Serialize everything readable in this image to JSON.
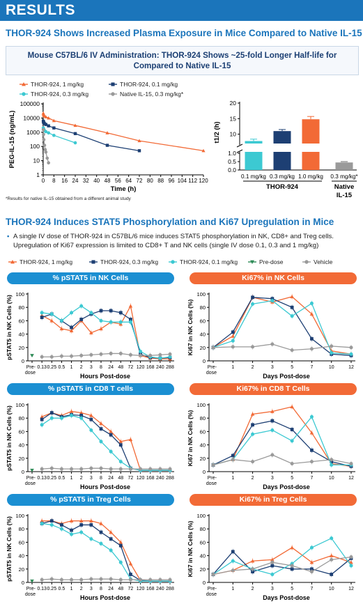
{
  "header": {
    "title": "RESULTS"
  },
  "section1": {
    "title": "THOR-924 Shows Increased Plasma Exposure in Mice Compared to Native IL-15",
    "box_line1": "Mouse C57BL/6 IV Administration: THOR-924 Shows ~25-fold Longer Half-life for",
    "box_line2": "Compared to Native IL-15",
    "footnote": "*Results for native IL-15 obtained from a different animal study"
  },
  "section2": {
    "title": "THOR-924 Induces STAT5 Phosphorylation and Ki67 Upregulation in Mice",
    "bullet_line1": "A single IV dose of THOR-924 in C57BL/6 mice induces STAT5 phosphorylation in NK, CD8+ and Treg cells.",
    "bullet_line2": "Upregulation of Ki67 expression is limited to CD8+ T and NK cells (single IV dose 0.1, 0.3 and 1 mg/kg)"
  },
  "colors": {
    "orange": "#f26a36",
    "navy": "#1d3f73",
    "teal": "#3cc9d2",
    "gray": "#9a9a9a",
    "green": "#2e8b57",
    "blue": "#1b75bb"
  },
  "pk_legend": [
    {
      "label": "THOR-924, 1 mg/kg",
      "color": "#f26a36",
      "marker": "triangle"
    },
    {
      "label": "THOR-924, 0.1 mg/kg",
      "color": "#3cc9d2",
      "marker": "circle"
    },
    {
      "label": "THOR-924, 0.3 mg/kg",
      "color": "#1d3f73",
      "marker": "square"
    },
    {
      "label": "Native IL-15, 0.3 mg/kg*",
      "color": "#9a9a9a",
      "marker": "circle"
    }
  ],
  "pd_legend": [
    {
      "label": "THOR-924, 1 mg/kg",
      "color": "#f26a36",
      "marker": "triangle"
    },
    {
      "label": "THOR-924, 0.3 mg/kg",
      "color": "#1d3f73",
      "marker": "square"
    },
    {
      "label": "THOR-924, 0.1 mg/kg",
      "color": "#3cc9d2",
      "marker": "circle"
    },
    {
      "label": "Pre-dose",
      "color": "#2e8b57",
      "marker": "tri-down"
    },
    {
      "label": "Vehicle",
      "color": "#9a9a9a",
      "marker": "circle"
    }
  ],
  "chart_data": [
    {
      "id": "pk",
      "type": "line",
      "xlabel": "Time (h)",
      "ylabel": "PEG-IL-15 (ng/mL)",
      "log_y": true,
      "xlim": [
        0,
        120
      ],
      "ylim": [
        1,
        100000
      ],
      "xticks": [
        "0",
        "8",
        "16",
        "24",
        "32",
        "40",
        "48",
        "56",
        "64",
        "72",
        "80",
        "88",
        "96",
        "104",
        "112",
        "120"
      ],
      "yticks": [
        "1",
        "10",
        "100",
        "1000",
        "10000",
        "100000"
      ],
      "series": [
        {
          "name": "THOR-924, 1 mg/kg",
          "color": "#f26a36",
          "marker": "triangle",
          "x": [
            0.08,
            0.25,
            0.5,
            1,
            2,
            4,
            8,
            24,
            48,
            72,
            120
          ],
          "y": [
            22000,
            18000,
            15000,
            14000,
            12000,
            10000,
            6500,
            3000,
            900,
            250,
            50
          ]
        },
        {
          "name": "THOR-924, 0.3 mg/kg",
          "color": "#1d3f73",
          "marker": "square",
          "x": [
            0.08,
            0.25,
            0.5,
            1,
            2,
            4,
            8,
            24,
            48,
            72
          ],
          "y": [
            6000,
            5200,
            4500,
            4000,
            3500,
            2800,
            2000,
            800,
            120,
            50
          ]
        },
        {
          "name": "THOR-924, 0.1 mg/kg",
          "color": "#3cc9d2",
          "marker": "circle",
          "x": [
            0.08,
            0.25,
            0.5,
            1,
            2,
            4,
            8,
            24
          ],
          "y": [
            2000,
            1800,
            1500,
            1300,
            1100,
            900,
            600,
            180
          ]
        },
        {
          "name": "Native IL-15, 0.3 mg/kg*",
          "color": "#9a9a9a",
          "marker": "circle",
          "x": [
            0.08,
            0.25,
            0.5,
            1,
            1.5,
            2,
            3,
            4
          ],
          "y": [
            1500,
            700,
            300,
            120,
            60,
            40,
            15,
            7
          ]
        }
      ]
    },
    {
      "id": "halflife",
      "type": "bar",
      "ylabel": "t1/2 (h)",
      "broken_axis": true,
      "upper_yticks": [
        "10",
        "15",
        "20"
      ],
      "lower_yticks": [
        "0.0",
        "0.5",
        "1.0"
      ],
      "categories": [
        "0.1 mg/kg",
        "0.3 mg/kg",
        "1.0 mg/kg",
        "0.3 mg/kg*"
      ],
      "values": [
        7.8,
        11.0,
        14.8,
        0.45
      ],
      "errors": [
        0.6,
        0.5,
        0.9,
        0.05
      ],
      "colors": [
        "#3cc9d2",
        "#1d3f73",
        "#f26a36",
        "#9a9a9a"
      ],
      "group_labels": [
        "THOR-924",
        "Native",
        "IL-15"
      ]
    },
    {
      "id": "pstat5_nk",
      "type": "line",
      "title": "% pSTAT5 in NK Cells",
      "xlabel": "Hours Post-dose",
      "ylabel": "pSTAT5 in NK Cells (%)",
      "ylim": [
        0,
        100
      ],
      "yticks": [
        "0",
        "20",
        "40",
        "60",
        "80",
        "100"
      ],
      "xcats": [
        "Pre-\ndose",
        "0.13",
        "0.25",
        "0.5",
        "1",
        "2",
        "3",
        "8",
        "24",
        "48",
        "72",
        "120",
        "168",
        "240",
        "288"
      ],
      "series": [
        {
          "name": "THOR-924, 1 mg/kg",
          "color": "#f26a36",
          "marker": "triangle",
          "start": 1,
          "values": [
            68,
            60,
            48,
            45,
            60,
            42,
            48,
            58,
            55,
            82,
            8,
            4,
            3,
            3
          ]
        },
        {
          "name": "THOR-924, 0.3 mg/kg",
          "color": "#1d3f73",
          "marker": "square",
          "start": 1,
          "values": [
            65,
            70,
            60,
            50,
            62,
            70,
            75,
            75,
            72,
            62,
            10,
            5,
            4,
            5
          ]
        },
        {
          "name": "THOR-924, 0.1 mg/kg",
          "color": "#3cc9d2",
          "marker": "circle",
          "start": 1,
          "values": [
            72,
            70,
            60,
            72,
            82,
            72,
            60,
            58,
            58,
            58,
            14,
            6,
            4,
            6
          ]
        },
        {
          "name": "Vehicle",
          "color": "#9a9a9a",
          "marker": "circle",
          "start": 1,
          "values": [
            6,
            6,
            7,
            7,
            8,
            9,
            10,
            11,
            11,
            9,
            8,
            8,
            9,
            10
          ]
        },
        {
          "name": "Pre-dose",
          "color": "#2e8b57",
          "marker": "tri-down",
          "start": 0,
          "values": [
            8
          ]
        }
      ]
    },
    {
      "id": "ki67_nk",
      "type": "line",
      "title": "Ki67% in NK Cells",
      "xlabel": "Days Post-dose",
      "ylabel": "Ki67 in NK Cells (%)",
      "ylim": [
        0,
        100
      ],
      "yticks": [
        "0",
        "20",
        "40",
        "60",
        "80",
        "100"
      ],
      "xcats": [
        "Pre-\ndose",
        "1",
        "2",
        "3",
        "5",
        "7",
        "10",
        "12"
      ],
      "series": [
        {
          "name": "THOR-924, 1 mg/kg",
          "color": "#f26a36",
          "marker": "triangle",
          "start": 0,
          "values": [
            20,
            37,
            95,
            88,
            96,
            70,
            15,
            10
          ]
        },
        {
          "name": "THOR-924, 0.3 mg/kg",
          "color": "#1d3f73",
          "marker": "square",
          "start": 0,
          "values": [
            20,
            43,
            95,
            93,
            80,
            33,
            10,
            8
          ]
        },
        {
          "name": "THOR-924, 0.1 mg/kg",
          "color": "#3cc9d2",
          "marker": "circle",
          "start": 0,
          "values": [
            20,
            30,
            85,
            90,
            67,
            86,
            12,
            10
          ]
        },
        {
          "name": "Vehicle",
          "color": "#9a9a9a",
          "marker": "circle",
          "start": 0,
          "values": [
            20,
            21,
            21,
            25,
            16,
            18,
            22,
            20
          ]
        }
      ]
    },
    {
      "id": "pstat5_cd8",
      "type": "line",
      "title": "% pSTAT5 in CD8 T cells",
      "xlabel": "Hours Post-dose",
      "ylabel": "pSTAT5 in NK Cells (%)",
      "ylim": [
        0,
        100
      ],
      "yticks": [
        "0",
        "20",
        "40",
        "60",
        "80",
        "100"
      ],
      "xcats": [
        "Pre-\ndose",
        "0.13",
        "0.25",
        "0.5",
        "1",
        "2",
        "3",
        "8",
        "24",
        "48",
        "72",
        "120",
        "168",
        "240",
        "288"
      ],
      "series": [
        {
          "name": "THOR-924, 1 mg/kg",
          "color": "#f26a36",
          "marker": "triangle",
          "start": 1,
          "values": [
            82,
            88,
            84,
            90,
            88,
            84,
            72,
            60,
            45,
            48,
            2,
            2,
            2,
            2
          ]
        },
        {
          "name": "THOR-924, 0.3 mg/kg",
          "color": "#1d3f73",
          "marker": "square",
          "start": 1,
          "values": [
            78,
            88,
            82,
            85,
            84,
            78,
            64,
            55,
            40,
            5,
            2,
            2,
            2,
            2
          ]
        },
        {
          "name": "THOR-924, 0.1 mg/kg",
          "color": "#3cc9d2",
          "marker": "circle",
          "start": 1,
          "values": [
            70,
            80,
            80,
            84,
            80,
            62,
            45,
            30,
            15,
            5,
            2,
            2,
            2,
            2
          ]
        },
        {
          "name": "Vehicle",
          "color": "#9a9a9a",
          "marker": "circle",
          "start": 1,
          "values": [
            4,
            5,
            4,
            4,
            4,
            5,
            5,
            4,
            4,
            4,
            4,
            4,
            4,
            4
          ]
        },
        {
          "name": "Pre-dose",
          "color": "#2e8b57",
          "marker": "tri-down",
          "start": 0,
          "values": [
            2
          ]
        }
      ]
    },
    {
      "id": "ki67_cd8",
      "type": "line",
      "title": "Ki67% in CD8 T Cells",
      "xlabel": "Days Post-dose",
      "ylabel": "Ki67 in NK Cells (%)",
      "ylim": [
        0,
        100
      ],
      "yticks": [
        "0",
        "20",
        "40",
        "60",
        "80",
        "100"
      ],
      "xcats": [
        "Pre-\ndose",
        "1",
        "2",
        "3",
        "5",
        "7",
        "10",
        "12"
      ],
      "series": [
        {
          "name": "THOR-924, 1 mg/kg",
          "color": "#f26a36",
          "marker": "triangle",
          "start": 0,
          "values": [
            10,
            18,
            86,
            90,
            97,
            58,
            12,
            8
          ]
        },
        {
          "name": "THOR-924, 0.3 mg/kg",
          "color": "#1d3f73",
          "marker": "square",
          "start": 0,
          "values": [
            10,
            24,
            70,
            76,
            63,
            32,
            15,
            8
          ]
        },
        {
          "name": "THOR-924, 0.1 mg/kg",
          "color": "#3cc9d2",
          "marker": "circle",
          "start": 0,
          "values": [
            10,
            18,
            56,
            62,
            46,
            82,
            10,
            10
          ]
        },
        {
          "name": "Vehicle",
          "color": "#9a9a9a",
          "marker": "circle",
          "start": 0,
          "values": [
            10,
            18,
            15,
            25,
            12,
            15,
            18,
            12
          ]
        }
      ]
    },
    {
      "id": "pstat5_treg",
      "type": "line",
      "title": "% pSTAT5 in Treg Cells",
      "xlabel": "Hours Post-dose",
      "ylabel": "pSTAT5 in NK Cells (%)",
      "ylim": [
        0,
        100
      ],
      "yticks": [
        "0",
        "20",
        "40",
        "60",
        "80",
        "100"
      ],
      "xcats": [
        "Pre-\ndose",
        "0.13",
        "0.25",
        "0.5",
        "1",
        "2",
        "3",
        "8",
        "24",
        "48",
        "72",
        "120",
        "168",
        "240",
        "288"
      ],
      "series": [
        {
          "name": "THOR-924, 1 mg/kg",
          "color": "#f26a36",
          "marker": "triangle",
          "start": 1,
          "values": [
            92,
            92,
            88,
            92,
            92,
            92,
            88,
            75,
            60,
            28,
            3,
            2,
            2,
            2
          ]
        },
        {
          "name": "THOR-924, 0.3 mg/kg",
          "color": "#1d3f73",
          "marker": "square",
          "start": 1,
          "values": [
            88,
            92,
            86,
            78,
            86,
            86,
            75,
            65,
            55,
            12,
            3,
            2,
            2,
            2
          ]
        },
        {
          "name": "THOR-924, 0.1 mg/kg",
          "color": "#3cc9d2",
          "marker": "circle",
          "start": 1,
          "values": [
            88,
            86,
            80,
            72,
            75,
            65,
            58,
            48,
            30,
            5,
            2,
            2,
            2,
            2
          ]
        },
        {
          "name": "Vehicle",
          "color": "#9a9a9a",
          "marker": "circle",
          "start": 1,
          "values": [
            4,
            5,
            4,
            4,
            4,
            5,
            5,
            5,
            4,
            4,
            4,
            4,
            4,
            4
          ]
        },
        {
          "name": "Pre-dose",
          "color": "#2e8b57",
          "marker": "tri-down",
          "start": 0,
          "values": [
            2
          ]
        }
      ]
    },
    {
      "id": "ki67_treg",
      "type": "line",
      "title": "Ki67% in Treg Cells",
      "xlabel": "Days Post-dose",
      "ylabel": "Ki67 in NK Cells (%)",
      "ylim": [
        0,
        100
      ],
      "yticks": [
        "0",
        "20",
        "40",
        "60",
        "80",
        "100"
      ],
      "xcats": [
        "Pre-\ndose",
        "1",
        "2",
        "3",
        "5",
        "7",
        "10",
        "12"
      ],
      "series": [
        {
          "name": "THOR-924, 1 mg/kg",
          "color": "#f26a36",
          "marker": "triangle",
          "start": 0,
          "values": [
            12,
            18,
            32,
            34,
            52,
            30,
            40,
            30
          ]
        },
        {
          "name": "THOR-924, 0.3 mg/kg",
          "color": "#1d3f73",
          "marker": "square",
          "start": 0,
          "values": [
            12,
            46,
            16,
            25,
            20,
            20,
            12,
            36
          ]
        },
        {
          "name": "THOR-924, 0.1 mg/kg",
          "color": "#3cc9d2",
          "marker": "circle",
          "start": 0,
          "values": [
            12,
            32,
            20,
            12,
            28,
            52,
            66,
            25
          ]
        },
        {
          "name": "Vehicle",
          "color": "#9a9a9a",
          "marker": "circle",
          "start": 0,
          "values": [
            12,
            18,
            20,
            30,
            25,
            16,
            34,
            38
          ]
        }
      ]
    }
  ]
}
